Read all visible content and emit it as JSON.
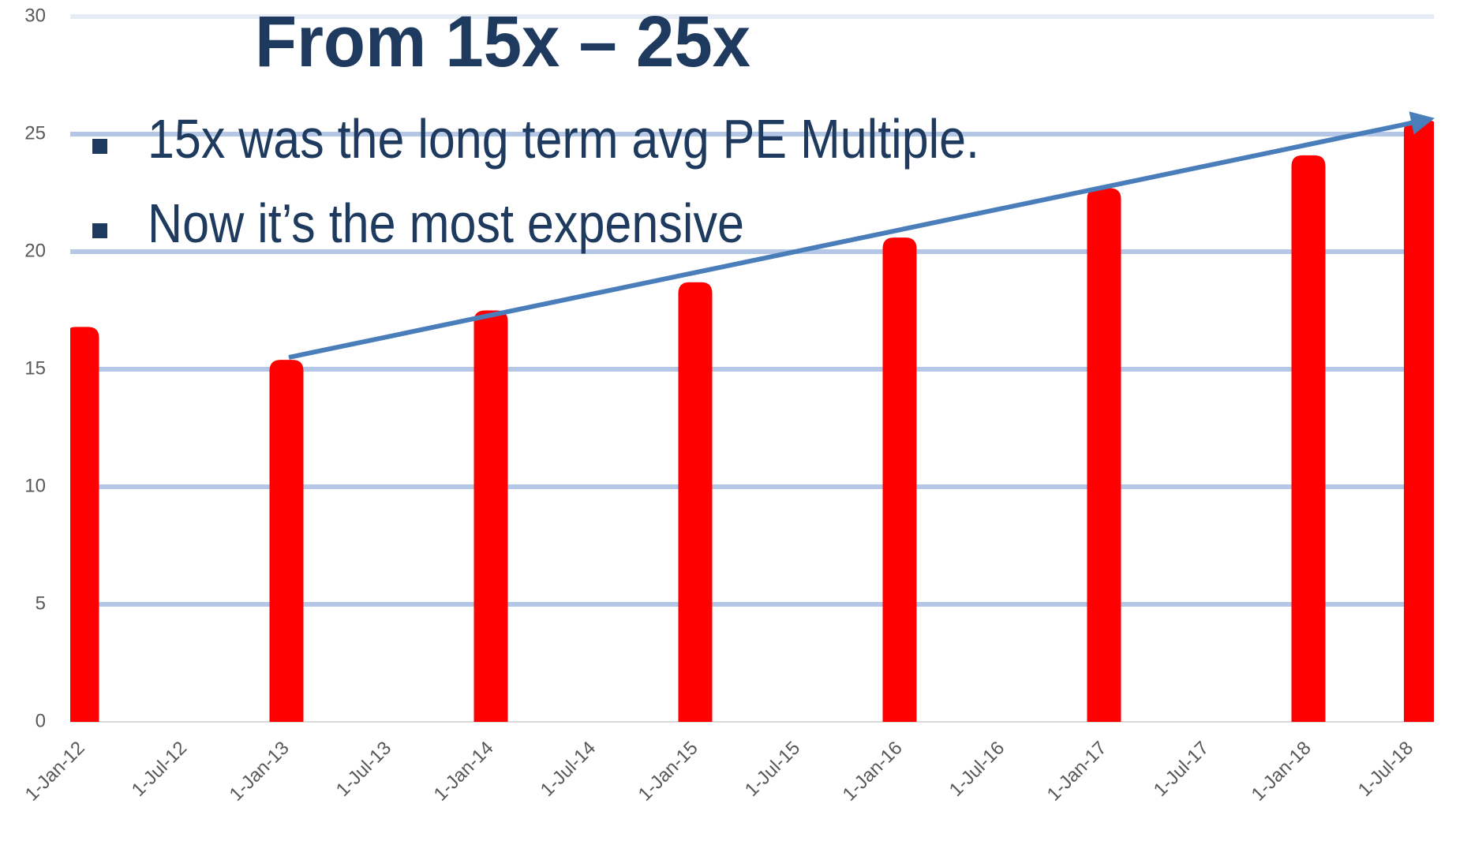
{
  "chart_data": {
    "type": "bar",
    "title": "From 15x – 25x",
    "bullets": [
      "15x was the long term avg PE Multiple.",
      "Now it’s the most expensive"
    ],
    "categories": [
      "1-Jan-12",
      "1-Jul-12",
      "1-Jan-13",
      "1-Jul-13",
      "1-Jan-14",
      "1-Jul-14",
      "1-Jan-15",
      "1-Jul-15",
      "1-Jan-16",
      "1-Jul-16",
      "1-Jan-17",
      "1-Jul-17",
      "1-Jan-18",
      "1-Jul-18"
    ],
    "values": [
      16.8,
      null,
      15.4,
      null,
      17.5,
      null,
      18.7,
      null,
      20.6,
      null,
      22.7,
      null,
      24.1,
      25.6
    ],
    "color": "#ff0000",
    "ylim": [
      0,
      30
    ],
    "yticks": [
      0,
      5,
      10,
      15,
      20,
      25,
      30
    ],
    "grid": true
  }
}
